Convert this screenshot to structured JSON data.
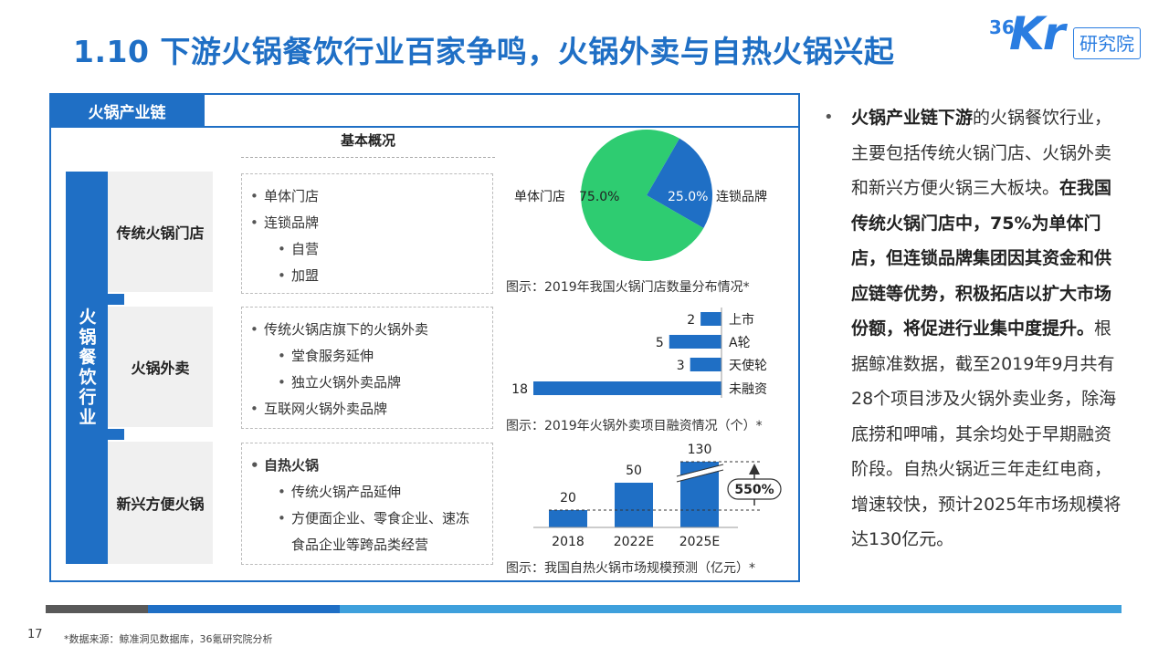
{
  "header": {
    "title": "1.10 下游火锅餐饮行业百家争鸣，火锅外卖与自热火锅兴起",
    "logo": {
      "num": "36",
      "kr": "Kr",
      "label": "研究院"
    }
  },
  "panel": {
    "tab": "火锅产业链",
    "side_label": "火锅餐饮行业",
    "overview_head": "基本概况",
    "categories": [
      {
        "name": "传统火锅门店",
        "items": [
          "单体门店",
          "连锁品牌",
          "自营",
          "加盟"
        ]
      },
      {
        "name": "火锅外卖",
        "items": [
          "传统火锅店旗下的火锅外卖",
          "堂食服务延伸",
          "独立火锅外卖品牌",
          "互联网火锅外卖品牌"
        ]
      },
      {
        "name": "新兴方便火锅",
        "items": [
          "自热火锅",
          "传统火锅产品延伸",
          "方便面企业、零食企业、速冻",
          "食品企业等跨品类经营"
        ]
      }
    ]
  },
  "charts": {
    "pie": {
      "caption": "图示：2019年我国火锅门店数量分布情况*",
      "slices": [
        {
          "label": "单体门店",
          "value": 75.0,
          "value_text": "75.0%",
          "color": "#2ecc71"
        },
        {
          "label": "连锁品牌",
          "value": 25.0,
          "value_text": "25.0%",
          "color": "#1f6fc5"
        }
      ]
    },
    "funding": {
      "caption": "图示：2019年火锅外卖项目融资情况（个）*",
      "categories": [
        "上市",
        "A轮",
        "天使轮",
        "未融资"
      ],
      "values": [
        2,
        5,
        3,
        18
      ],
      "color": "#1f6fc5"
    },
    "market": {
      "caption": "图示：我国自热火锅市场规模预测（亿元）*",
      "categories": [
        "2018",
        "2022E",
        "2025E"
      ],
      "values": [
        20,
        50,
        130
      ],
      "growth_label": "550%",
      "color": "#1f6fc5"
    }
  },
  "right_text": {
    "p1_bold": "火锅产业链下游",
    "p1": "的火锅餐饮行业，主要包括传统火锅门店、火锅外卖和新兴方便火锅三大板块。",
    "p2_bold": "在我国传统火锅门店中，75%为单体门店，但连锁品牌集团因其资金和供应链等优势，积极拓店以扩大市场份额，将促进行业集中度提升。",
    "p3": "根据鲸准数据，截至2019年9月共有28个项目涉及火锅外卖业务，除海底捞和呷哺，其余均处于早期融资阶段。自热火锅近三年走红电商，增速较快，预计2025年市场规模将达130亿元。"
  },
  "footer": {
    "page": "17",
    "source": "*数据来源：鲸准洞见数据库，36氪研究院分析"
  }
}
